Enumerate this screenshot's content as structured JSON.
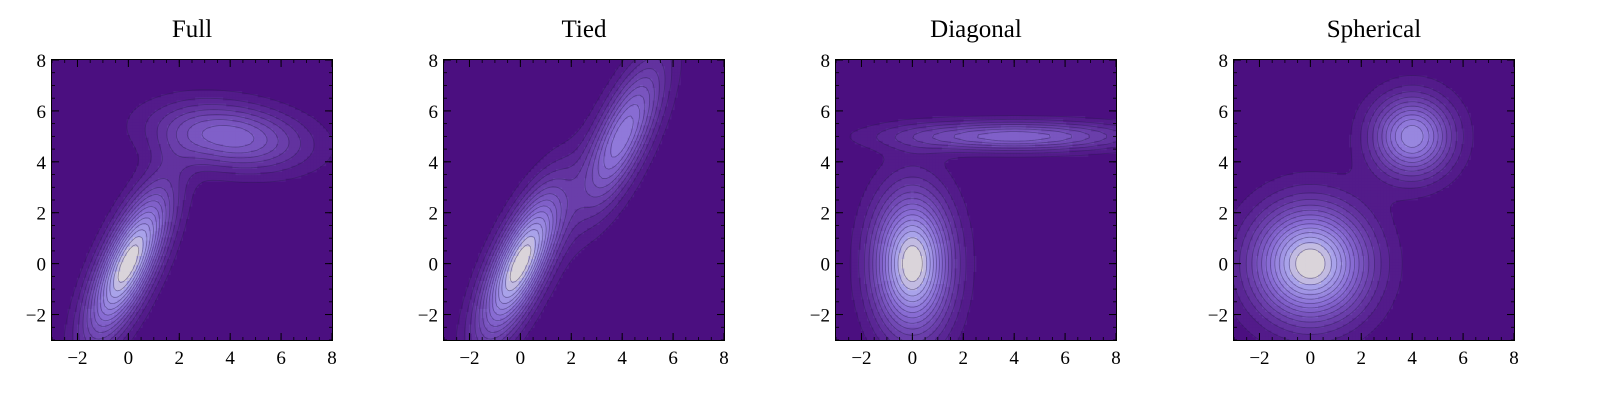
{
  "figure": {
    "background": "#ffffff"
  },
  "chart_data": [
    {
      "type": "contour",
      "title": "Full",
      "xlim": [
        -3,
        8
      ],
      "ylim": [
        -3,
        8
      ],
      "xticks": [
        -2,
        0,
        2,
        4,
        6,
        8
      ],
      "yticks": [
        -2,
        0,
        2,
        4,
        6,
        8
      ],
      "xtick_labels": [
        "−2",
        "0",
        "2",
        "4",
        "6",
        "8"
      ],
      "ytick_labels": [
        "−2",
        "0",
        "2",
        "4",
        "6",
        "8"
      ],
      "colors": {
        "background": "#4b0f80",
        "peak": "#f3ecd2"
      },
      "components": [
        {
          "mean": [
            0,
            0
          ],
          "covariance": [
            [
              1.2,
              1.6
            ],
            [
              1.6,
              4.0
            ]
          ],
          "weight": 1.0
        },
        {
          "mean": [
            4,
            5
          ],
          "covariance": [
            [
              4.0,
              -0.4
            ],
            [
              -0.4,
              0.8
            ]
          ],
          "weight": 0.52
        }
      ]
    },
    {
      "type": "contour",
      "title": "Tied",
      "xlim": [
        -3,
        8
      ],
      "ylim": [
        -3,
        8
      ],
      "xticks": [
        -2,
        0,
        2,
        4,
        6,
        8
      ],
      "yticks": [
        -2,
        0,
        2,
        4,
        6,
        8
      ],
      "xtick_labels": [
        "−2",
        "0",
        "2",
        "4",
        "6",
        "8"
      ],
      "ytick_labels": [
        "−2",
        "0",
        "2",
        "4",
        "6",
        "8"
      ],
      "colors": {
        "background": "#4b0f80",
        "peak": "#f3ecd2"
      },
      "components": [
        {
          "mean": [
            0,
            0
          ],
          "covariance": [
            [
              1.2,
              1.6
            ],
            [
              1.6,
              4.0
            ]
          ],
          "weight": 1.0
        },
        {
          "mean": [
            4,
            5
          ],
          "covariance": [
            [
              1.2,
              1.6
            ],
            [
              1.6,
              4.0
            ]
          ],
          "weight": 0.65
        }
      ]
    },
    {
      "type": "contour",
      "title": "Diagonal",
      "xlim": [
        -3,
        8
      ],
      "ylim": [
        -3,
        8
      ],
      "xticks": [
        -2,
        0,
        2,
        4,
        6,
        8
      ],
      "yticks": [
        -2,
        0,
        2,
        4,
        6,
        8
      ],
      "xtick_labels": [
        "−2",
        "0",
        "2",
        "4",
        "6",
        "8"
      ],
      "ytick_labels": [
        "−2",
        "0",
        "2",
        "4",
        "6",
        "8"
      ],
      "colors": {
        "background": "#4b0f80",
        "peak": "#f3ecd2"
      },
      "components": [
        {
          "mean": [
            0,
            0
          ],
          "covariance": [
            [
              1.1,
              0
            ],
            [
              0,
              3.6
            ]
          ],
          "weight": 1.0
        },
        {
          "mean": [
            4,
            5
          ],
          "covariance": [
            [
              10,
              0
            ],
            [
              0,
              0.16
            ]
          ],
          "weight": 0.52
        }
      ]
    },
    {
      "type": "contour",
      "title": "Spherical",
      "xlim": [
        -3,
        8
      ],
      "ylim": [
        -3,
        8
      ],
      "xticks": [
        -2,
        0,
        2,
        4,
        6,
        8
      ],
      "yticks": [
        -2,
        0,
        2,
        4,
        6,
        8
      ],
      "xtick_labels": [
        "−2",
        "0",
        "2",
        "4",
        "6",
        "8"
      ],
      "ytick_labels": [
        "−2",
        "0",
        "2",
        "4",
        "6",
        "8"
      ],
      "colors": {
        "background": "#4b0f80",
        "peak": "#f3ecd2"
      },
      "components": [
        {
          "mean": [
            0,
            0
          ],
          "covariance": [
            [
              2.4,
              0
            ],
            [
              0,
              2.4
            ]
          ],
          "weight": 1.0
        },
        {
          "mean": [
            4,
            5
          ],
          "covariance": [
            [
              1.2,
              0
            ],
            [
              0,
              1.2
            ]
          ],
          "weight": 0.72
        }
      ]
    }
  ]
}
